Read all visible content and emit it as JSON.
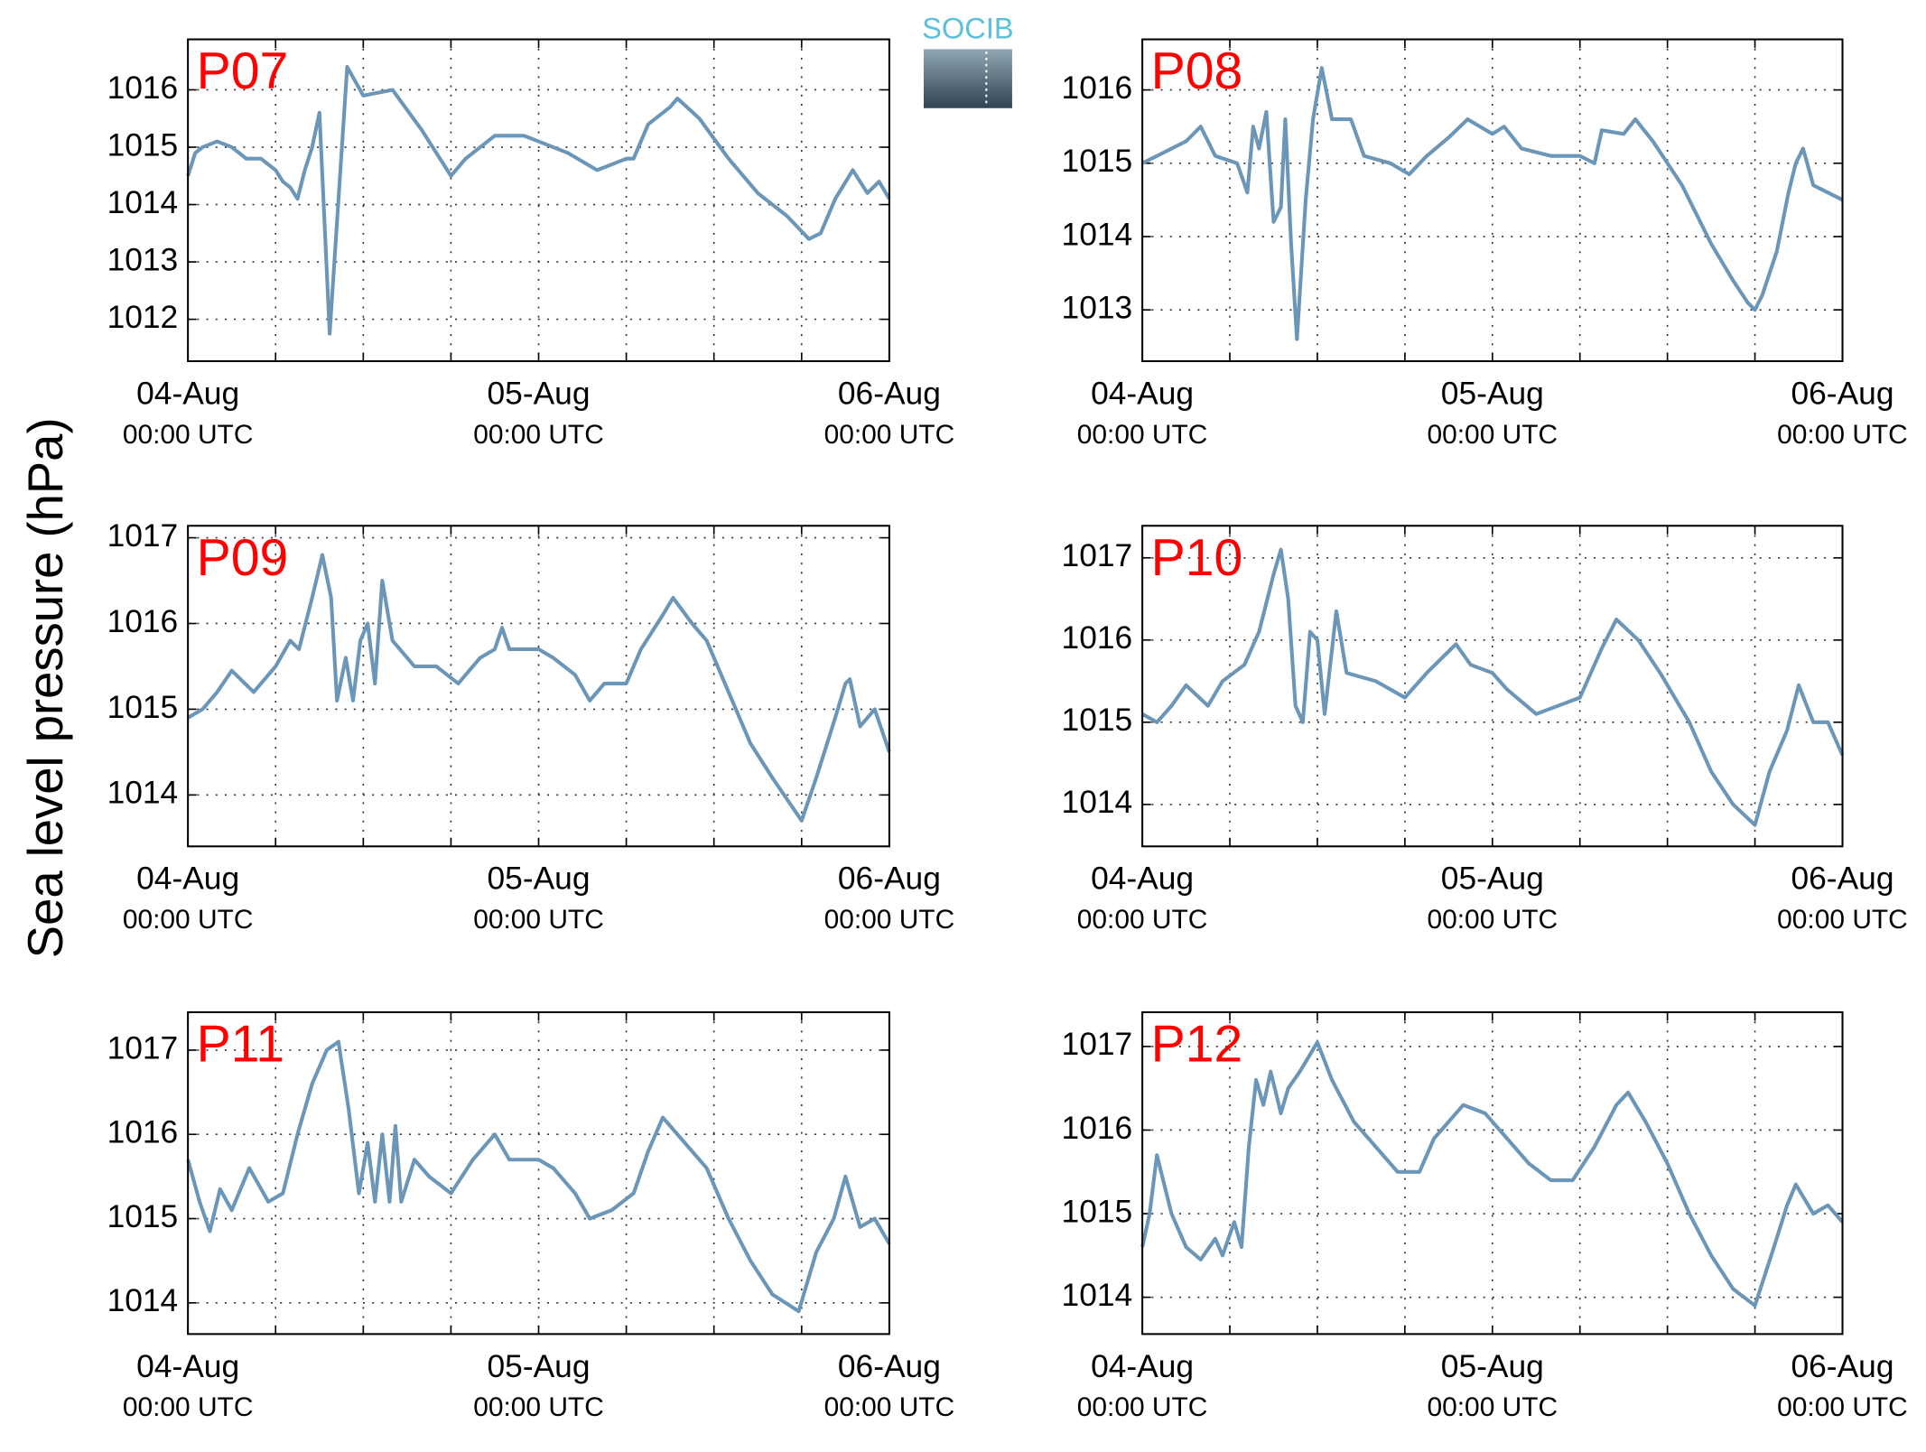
{
  "logo": "SOCIB",
  "ylabel": "Sea level pressure (hPa)",
  "chart_data": [
    {
      "type": "line",
      "title": "P07",
      "color": "#6b96b8",
      "grid": true,
      "xlim": [
        0,
        48
      ],
      "ylim": [
        1011.27,
        1016.88
      ],
      "yticks": [
        1012,
        1013,
        1014,
        1015,
        1016
      ],
      "xticks": [
        {
          "value": 0,
          "label": "04-Aug",
          "sublabel": "00:00 UTC"
        },
        {
          "value": 24,
          "label": "05-Aug",
          "sublabel": "00:00 UTC"
        },
        {
          "value": 48,
          "label": "06-Aug",
          "sublabel": "00:00 UTC"
        }
      ],
      "xminorticks": [
        6,
        12,
        18,
        30,
        36,
        42
      ],
      "x": [
        0,
        0.5,
        1,
        2,
        3,
        4,
        5,
        6,
        6.5,
        7,
        7.5,
        8,
        8.5,
        9,
        9.7,
        10.9,
        12,
        14,
        16,
        18,
        19,
        21,
        23,
        24,
        26,
        28,
        30,
        30.5,
        31.5,
        33,
        33.5,
        35,
        37,
        39,
        41,
        42.5,
        43.3,
        44.3,
        45.5,
        46.5,
        47.3,
        48
      ],
      "values": [
        1014.5,
        1014.9,
        1015.0,
        1015.1,
        1015.0,
        1014.8,
        1014.8,
        1014.6,
        1014.4,
        1014.3,
        1014.1,
        1014.6,
        1015.0,
        1015.6,
        1011.75,
        1016.4,
        1015.9,
        1016.0,
        1015.3,
        1014.5,
        1014.8,
        1015.2,
        1015.2,
        1015.1,
        1014.9,
        1014.6,
        1014.8,
        1014.8,
        1015.4,
        1015.7,
        1015.85,
        1015.5,
        1014.8,
        1014.2,
        1013.8,
        1013.4,
        1013.5,
        1014.1,
        1014.6,
        1014.2,
        1014.4,
        1014.1
      ]
    },
    {
      "type": "line",
      "title": "P08",
      "color": "#6b96b8",
      "grid": true,
      "xlim": [
        0,
        48
      ],
      "ylim": [
        1012.3,
        1016.69
      ],
      "yticks": [
        1013,
        1014,
        1015,
        1016
      ],
      "xticks": [
        {
          "value": 0,
          "label": "04-Aug",
          "sublabel": "00:00 UTC"
        },
        {
          "value": 24,
          "label": "05-Aug",
          "sublabel": "00:00 UTC"
        },
        {
          "value": 48,
          "label": "06-Aug",
          "sublabel": "00:00 UTC"
        }
      ],
      "xminorticks": [
        6,
        12,
        18,
        30,
        36,
        42
      ],
      "x": [
        0,
        1,
        3,
        4,
        5,
        6.5,
        7.2,
        7.6,
        8,
        8.5,
        9,
        9.5,
        9.8,
        10.2,
        10.6,
        11.2,
        11.7,
        12.3,
        13,
        14.3,
        15.2,
        17,
        18.3,
        19.5,
        21,
        22.3,
        24,
        24.8,
        26,
        28,
        30,
        31,
        31.5,
        33,
        33.8,
        35,
        37,
        39,
        40.5,
        41.5,
        42,
        42.5,
        43.5,
        44.3,
        44.8,
        45.3,
        46,
        47,
        48
      ],
      "values": [
        1015.0,
        1015.1,
        1015.3,
        1015.5,
        1015.1,
        1015.0,
        1014.6,
        1015.5,
        1015.2,
        1015.7,
        1014.2,
        1014.4,
        1015.6,
        1013.9,
        1012.6,
        1014.5,
        1015.6,
        1016.3,
        1015.6,
        1015.6,
        1015.1,
        1015.0,
        1014.85,
        1015.1,
        1015.35,
        1015.6,
        1015.4,
        1015.5,
        1015.2,
        1015.1,
        1015.1,
        1015.0,
        1015.45,
        1015.4,
        1015.6,
        1015.3,
        1014.7,
        1013.9,
        1013.4,
        1013.1,
        1013.0,
        1013.2,
        1013.8,
        1014.6,
        1015.0,
        1015.2,
        1014.7,
        1014.6,
        1014.5
      ]
    },
    {
      "type": "line",
      "title": "P09",
      "color": "#6b96b8",
      "grid": true,
      "xlim": [
        0,
        48
      ],
      "ylim": [
        1013.4,
        1017.14
      ],
      "yticks": [
        1014,
        1015,
        1016,
        1017
      ],
      "xticks": [
        {
          "value": 0,
          "label": "04-Aug",
          "sublabel": "00:00 UTC"
        },
        {
          "value": 24,
          "label": "05-Aug",
          "sublabel": "00:00 UTC"
        },
        {
          "value": 48,
          "label": "06-Aug",
          "sublabel": "00:00 UTC"
        }
      ],
      "xminorticks": [
        6,
        12,
        18,
        30,
        36,
        42
      ],
      "x": [
        0,
        1,
        2,
        3,
        4.5,
        6,
        7,
        7.6,
        8.5,
        9.2,
        9.8,
        10.2,
        10.8,
        11.3,
        11.8,
        12.3,
        12.8,
        13.3,
        14,
        15.5,
        17,
        18.5,
        20,
        21,
        21.5,
        22,
        24,
        25,
        26.5,
        27.5,
        28.5,
        30,
        31,
        32.5,
        33.2,
        34.5,
        35.5,
        37,
        38.5,
        40,
        41.2,
        42,
        43,
        44.3,
        45,
        45.3,
        46,
        47,
        48
      ],
      "values": [
        1014.9,
        1015.0,
        1015.2,
        1015.45,
        1015.2,
        1015.5,
        1015.8,
        1015.7,
        1016.3,
        1016.8,
        1016.3,
        1015.1,
        1015.6,
        1015.1,
        1015.8,
        1016.0,
        1015.3,
        1016.5,
        1015.8,
        1015.5,
        1015.5,
        1015.3,
        1015.6,
        1015.7,
        1015.95,
        1015.7,
        1015.7,
        1015.6,
        1015.4,
        1015.1,
        1015.3,
        1015.3,
        1015.7,
        1016.1,
        1016.3,
        1016.0,
        1015.8,
        1015.2,
        1014.6,
        1014.2,
        1013.9,
        1013.7,
        1014.2,
        1014.9,
        1015.3,
        1015.35,
        1014.8,
        1015.0,
        1014.5
      ]
    },
    {
      "type": "line",
      "title": "P10",
      "color": "#6b96b8",
      "grid": true,
      "xlim": [
        0,
        48
      ],
      "ylim": [
        1013.49,
        1017.39
      ],
      "yticks": [
        1014,
        1015,
        1016,
        1017
      ],
      "xticks": [
        {
          "value": 0,
          "label": "04-Aug",
          "sublabel": "00:00 UTC"
        },
        {
          "value": 24,
          "label": "05-Aug",
          "sublabel": "00:00 UTC"
        },
        {
          "value": 48,
          "label": "06-Aug",
          "sublabel": "00:00 UTC"
        }
      ],
      "xminorticks": [
        6,
        12,
        18,
        30,
        36,
        42
      ],
      "x": [
        0,
        1,
        2,
        3,
        4.5,
        5.5,
        7,
        8,
        9,
        9.5,
        10,
        10.5,
        11,
        11.5,
        12,
        12.5,
        13.3,
        14,
        16,
        18,
        19.5,
        21.5,
        22.5,
        24,
        25,
        27,
        28.5,
        30,
        31.5,
        32.5,
        34,
        35.5,
        37.5,
        39,
        40.5,
        42,
        43,
        44.2,
        45,
        46,
        47,
        48
      ],
      "values": [
        1015.1,
        1015.0,
        1015.2,
        1015.45,
        1015.2,
        1015.5,
        1015.7,
        1016.1,
        1016.8,
        1017.1,
        1016.5,
        1015.2,
        1015.0,
        1016.1,
        1016.0,
        1015.1,
        1016.35,
        1015.6,
        1015.5,
        1015.3,
        1015.6,
        1015.95,
        1015.7,
        1015.6,
        1015.4,
        1015.1,
        1015.2,
        1015.3,
        1015.9,
        1016.25,
        1016.0,
        1015.6,
        1015.0,
        1014.4,
        1014.0,
        1013.75,
        1014.4,
        1014.9,
        1015.45,
        1015.0,
        1015.0,
        1014.6
      ]
    },
    {
      "type": "line",
      "title": "P11",
      "color": "#6b96b8",
      "grid": true,
      "xlim": [
        0,
        48
      ],
      "ylim": [
        1013.63,
        1017.45
      ],
      "yticks": [
        1014,
        1015,
        1016,
        1017
      ],
      "xticks": [
        {
          "value": 0,
          "label": "04-Aug",
          "sublabel": "00:00 UTC"
        },
        {
          "value": 24,
          "label": "05-Aug",
          "sublabel": "00:00 UTC"
        },
        {
          "value": 48,
          "label": "06-Aug",
          "sublabel": "00:00 UTC"
        }
      ],
      "xminorticks": [
        6,
        12,
        18,
        30,
        36,
        42
      ],
      "x": [
        0,
        0.8,
        1.5,
        2.2,
        3,
        4.2,
        5.5,
        6.5,
        7.5,
        8.5,
        9.5,
        10.3,
        11,
        11.7,
        12.3,
        12.8,
        13.3,
        13.8,
        14.2,
        14.6,
        15.5,
        16.5,
        18,
        19.5,
        21,
        22,
        24,
        25,
        26.5,
        27.5,
        29,
        30.5,
        31.5,
        32.5,
        34,
        35.5,
        37,
        38.5,
        40,
        41.8,
        43,
        44.2,
        45,
        46,
        47,
        48
      ],
      "values": [
        1015.7,
        1015.2,
        1014.85,
        1015.35,
        1015.1,
        1015.6,
        1015.2,
        1015.3,
        1016.0,
        1016.6,
        1017.0,
        1017.1,
        1016.3,
        1015.3,
        1015.9,
        1015.2,
        1016.0,
        1015.2,
        1016.1,
        1015.2,
        1015.7,
        1015.5,
        1015.3,
        1015.7,
        1016.0,
        1015.7,
        1015.7,
        1015.6,
        1015.3,
        1015.0,
        1015.1,
        1015.3,
        1015.8,
        1016.2,
        1015.9,
        1015.6,
        1015.0,
        1014.5,
        1014.1,
        1013.9,
        1014.6,
        1015.0,
        1015.5,
        1014.9,
        1015.0,
        1014.7
      ]
    },
    {
      "type": "line",
      "title": "P12",
      "color": "#6b96b8",
      "grid": true,
      "xlim": [
        0,
        48
      ],
      "ylim": [
        1013.56,
        1017.41
      ],
      "yticks": [
        1014,
        1015,
        1016,
        1017
      ],
      "xticks": [
        {
          "value": 0,
          "label": "04-Aug",
          "sublabel": "00:00 UTC"
        },
        {
          "value": 24,
          "label": "05-Aug",
          "sublabel": "00:00 UTC"
        },
        {
          "value": 48,
          "label": "06-Aug",
          "sublabel": "00:00 UTC"
        }
      ],
      "xminorticks": [
        6,
        12,
        18,
        30,
        36,
        42
      ],
      "x": [
        0,
        0.5,
        1,
        2,
        3,
        4,
        5,
        5.5,
        6.3,
        6.8,
        7.3,
        7.8,
        8.3,
        8.8,
        9.5,
        10,
        10.8,
        12,
        13,
        14.5,
        16,
        17.5,
        19,
        20,
        21,
        22,
        23.5,
        25,
        26.5,
        28,
        29.5,
        31,
        32.5,
        33.3,
        34.5,
        36,
        37.5,
        39,
        40.5,
        42,
        43.3,
        44.2,
        44.8,
        46,
        47,
        48
      ],
      "values": [
        1014.6,
        1015.0,
        1015.7,
        1015.0,
        1014.6,
        1014.45,
        1014.7,
        1014.5,
        1014.9,
        1014.6,
        1015.8,
        1016.6,
        1016.3,
        1016.7,
        1016.2,
        1016.5,
        1016.7,
        1017.05,
        1016.6,
        1016.1,
        1015.8,
        1015.5,
        1015.5,
        1015.9,
        1016.1,
        1016.3,
        1016.2,
        1015.9,
        1015.6,
        1015.4,
        1015.4,
        1015.8,
        1016.3,
        1016.45,
        1016.1,
        1015.6,
        1015.0,
        1014.5,
        1014.1,
        1013.9,
        1014.6,
        1015.1,
        1015.35,
        1015.0,
        1015.1,
        1014.9
      ]
    }
  ]
}
